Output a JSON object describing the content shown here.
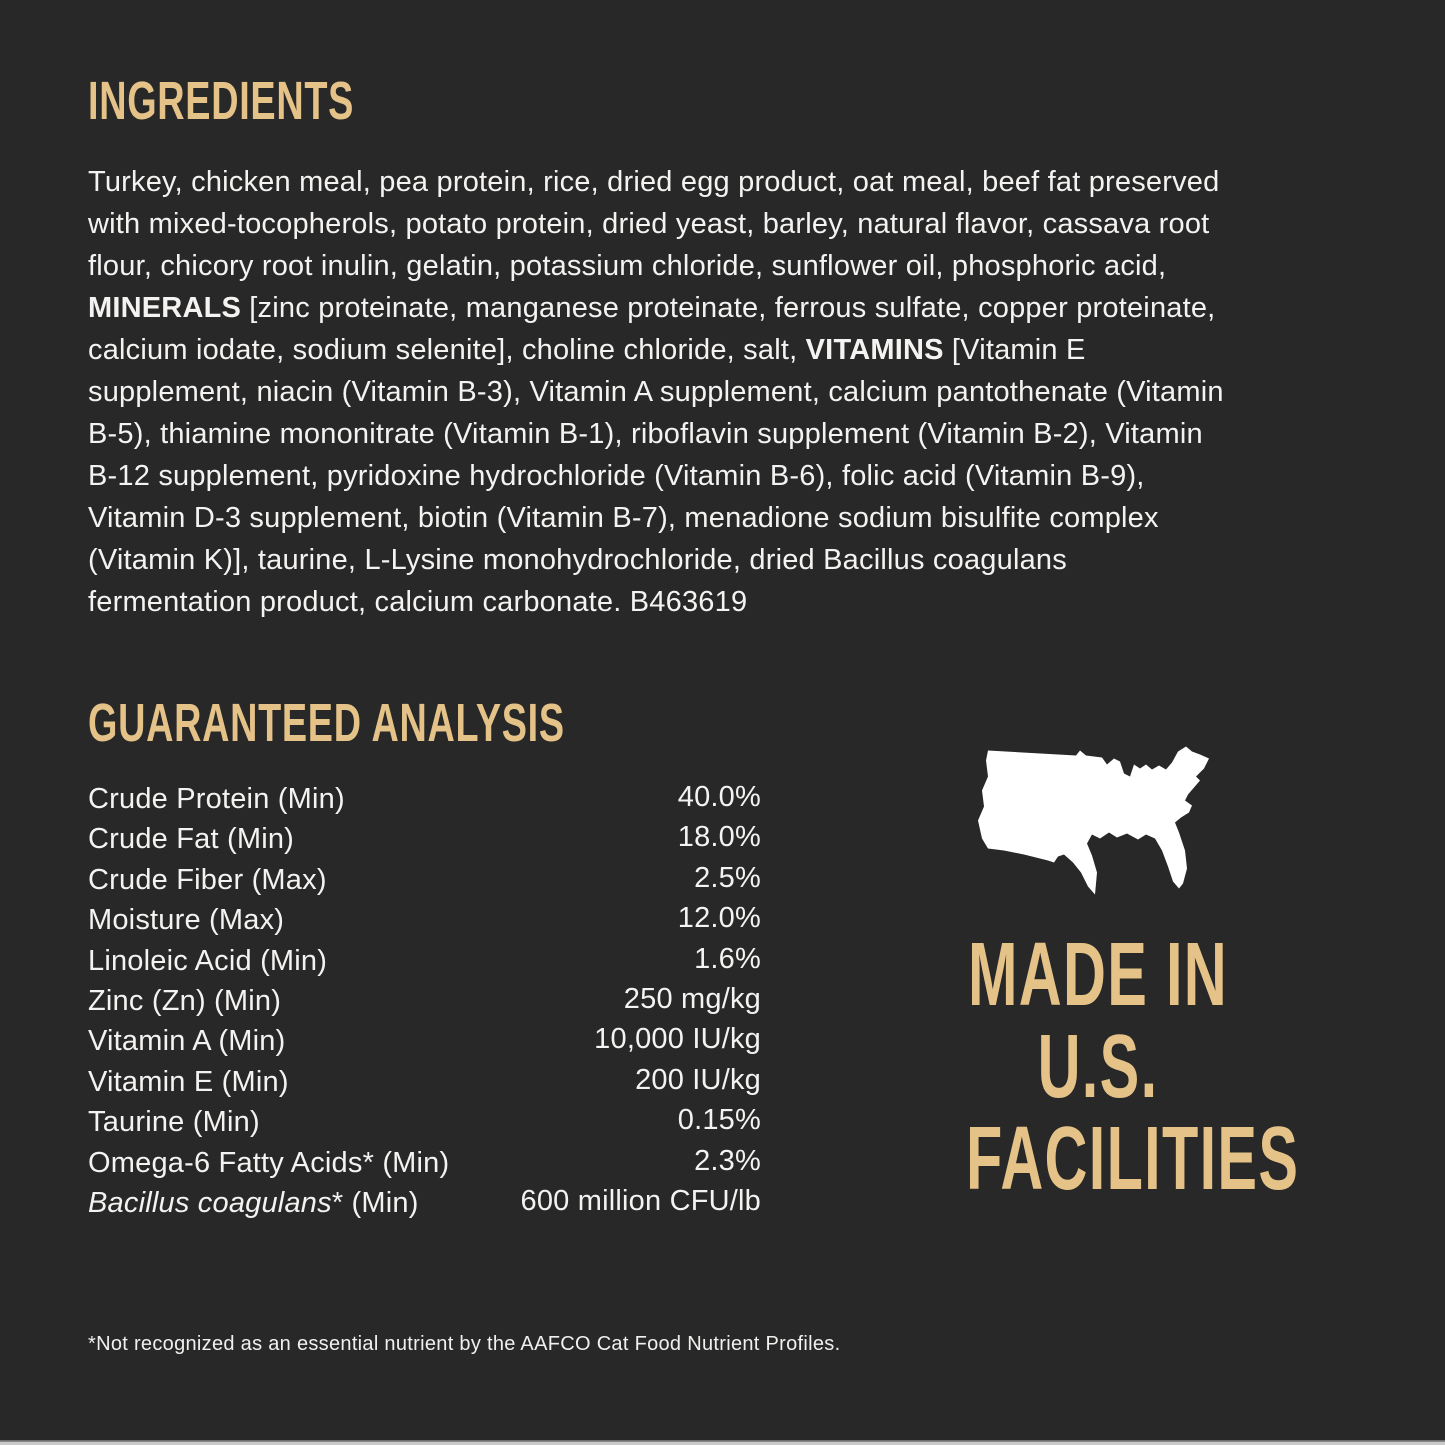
{
  "page": {
    "background": "#282828",
    "body_text_color": "#f4f3f1",
    "accent_gold": "#e5c388",
    "map_color": "#ffffff"
  },
  "ingredients": {
    "heading": "INGREDIENTS",
    "lines": [
      [
        {
          "t": "Turkey, chicken meal, pea protein, rice, dried egg product, oat meal, beef fat preserved"
        }
      ],
      [
        {
          "t": "with mixed-tocopherols, potato protein, dried yeast, barley, natural flavor, cassava root"
        }
      ],
      [
        {
          "t": "flour, chicory root inulin, gelatin, potassium chloride, sunflower oil, phosphoric acid,"
        }
      ],
      [
        {
          "t": "MINERALS",
          "b": true
        },
        {
          "t": " [zinc proteinate, manganese proteinate, ferrous sulfate, copper proteinate,"
        }
      ],
      [
        {
          "t": "calcium iodate, sodium selenite], choline chloride, salt, "
        },
        {
          "t": "VITAMINS",
          "b": true
        },
        {
          "t": " [Vitamin E"
        }
      ],
      [
        {
          "t": "supplement, niacin (Vitamin B-3), Vitamin A supplement, calcium pantothenate (Vitamin"
        }
      ],
      [
        {
          "t": "B-5), thiamine mononitrate (Vitamin B-1), riboflavin supplement (Vitamin B-2), Vitamin"
        }
      ],
      [
        {
          "t": "B-12 supplement, pyridoxine hydrochloride (Vitamin B-6), folic acid (Vitamin B-9),"
        }
      ],
      [
        {
          "t": "Vitamin D-3 supplement, biotin (Vitamin B-7), menadione sodium bisulfite complex"
        }
      ],
      [
        {
          "t": "(Vitamin K)], taurine, L-Lysine monohydrochloride, dried Bacillus coagulans"
        }
      ],
      [
        {
          "t": "fermentation product, calcium carbonate. B463619"
        }
      ]
    ]
  },
  "analysis": {
    "heading": "GUARANTEED ANALYSIS",
    "rows": [
      {
        "label": [
          {
            "t": "Crude Protein (Min)"
          }
        ],
        "value": "40.0%"
      },
      {
        "label": [
          {
            "t": "Crude Fat (Min)"
          }
        ],
        "value": "18.0%"
      },
      {
        "label": [
          {
            "t": "Crude Fiber (Max)"
          }
        ],
        "value": "2.5%"
      },
      {
        "label": [
          {
            "t": "Moisture (Max)"
          }
        ],
        "value": "12.0%"
      },
      {
        "label": [
          {
            "t": "Linoleic Acid (Min)"
          }
        ],
        "value": "1.6%"
      },
      {
        "label": [
          {
            "t": "Zinc (Zn) (Min)"
          }
        ],
        "value": "250 mg/kg"
      },
      {
        "label": [
          {
            "t": "Vitamin A (Min)"
          }
        ],
        "value": "10,000 IU/kg"
      },
      {
        "label": [
          {
            "t": "Vitamin E (Min)"
          }
        ],
        "value": "200 IU/kg"
      },
      {
        "label": [
          {
            "t": "Taurine (Min)"
          }
        ],
        "value": "0.15%"
      },
      {
        "label": [
          {
            "t": "Omega-6 Fatty Acids* (Min)"
          }
        ],
        "value": "2.3%"
      },
      {
        "label": [
          {
            "t": "Bacillus coagulans",
            "i": true
          },
          {
            "t": "* (Min)"
          }
        ],
        "value": "600 million CFU/lb"
      }
    ]
  },
  "made_in": {
    "map_icon": "usa-map-silhouette",
    "lines": [
      "MADE IN",
      "U.S.",
      "FACILITIES"
    ]
  },
  "footnote": {
    "text": "*Not recognized as an essential nutrient by the AAFCO Cat Food Nutrient Profiles."
  }
}
